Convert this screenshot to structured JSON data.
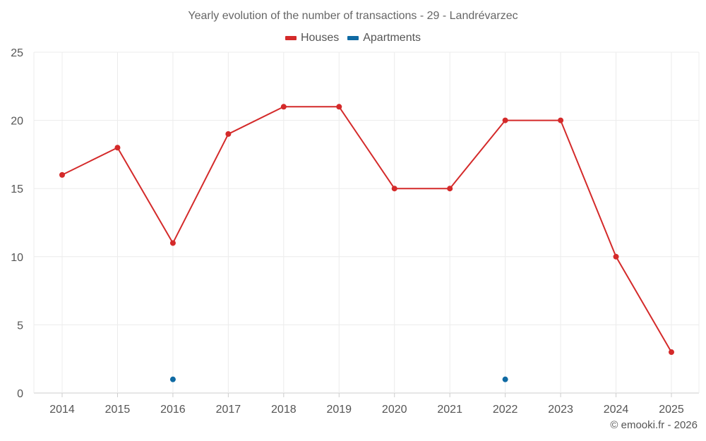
{
  "chart_data": {
    "type": "line",
    "title": "Yearly evolution of the number of transactions - 29 - Landrévarzec",
    "categories": [
      "2014",
      "2015",
      "2016",
      "2017",
      "2018",
      "2019",
      "2020",
      "2021",
      "2022",
      "2023",
      "2024",
      "2025"
    ],
    "series": [
      {
        "name": "Houses",
        "color": "#d42a2a",
        "values": [
          16,
          18,
          11,
          19,
          21,
          21,
          15,
          15,
          20,
          20,
          10,
          3
        ]
      },
      {
        "name": "Apartments",
        "color": "#0f6aa3",
        "values": [
          null,
          null,
          1,
          null,
          null,
          null,
          null,
          null,
          1,
          null,
          null,
          null
        ]
      }
    ],
    "ylim": [
      0,
      25
    ],
    "yticks": [
      0,
      5,
      10,
      15,
      20,
      25
    ],
    "xlabel": "",
    "ylabel": "",
    "grid": true,
    "legend_position": "top-center"
  },
  "credit": "© emooki.fr - 2026"
}
